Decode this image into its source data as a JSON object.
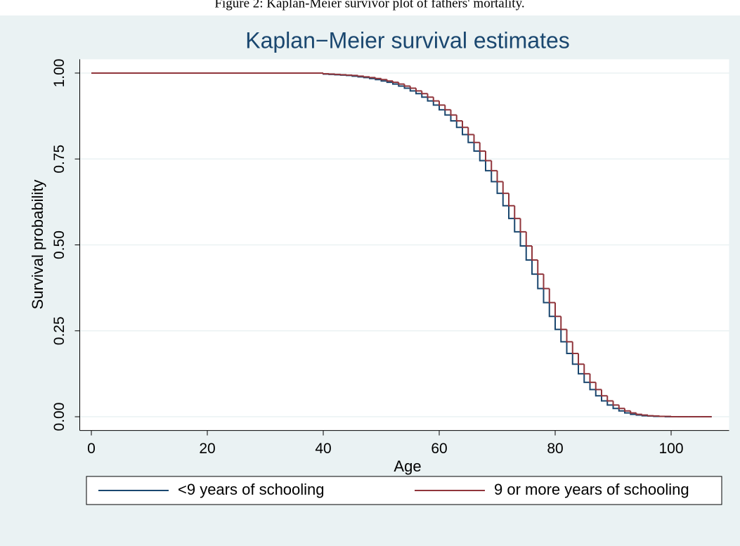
{
  "caption": "Figure 2: Kaplan-Meier survivor plot of fathers' mortality.",
  "chart_data": {
    "type": "step",
    "title": "Kaplan−Meier survival estimates",
    "x_label": "Age",
    "y_label": "Survival probability",
    "x": [
      0,
      40,
      41,
      42,
      43,
      44,
      45,
      46,
      47,
      48,
      49,
      50,
      51,
      52,
      53,
      54,
      55,
      56,
      57,
      58,
      59,
      60,
      61,
      62,
      63,
      64,
      65,
      66,
      67,
      68,
      69,
      70,
      71,
      72,
      73,
      74,
      75,
      76,
      77,
      78,
      79,
      80,
      81,
      82,
      83,
      84,
      85,
      86,
      87,
      88,
      89,
      90,
      91,
      92,
      93,
      94,
      95,
      96,
      97,
      98,
      99,
      100,
      101,
      102,
      103,
      104,
      105,
      106,
      107
    ],
    "series": [
      {
        "name": "<9 years of schooling",
        "color": "#1a476f",
        "values": [
          1.0,
          0.997,
          0.996,
          0.995,
          0.994,
          0.993,
          0.991,
          0.989,
          0.987,
          0.984,
          0.981,
          0.977,
          0.973,
          0.968,
          0.962,
          0.956,
          0.948,
          0.94,
          0.93,
          0.919,
          0.907,
          0.893,
          0.878,
          0.861,
          0.842,
          0.821,
          0.798,
          0.773,
          0.745,
          0.716,
          0.684,
          0.65,
          0.614,
          0.577,
          0.538,
          0.497,
          0.456,
          0.415,
          0.373,
          0.332,
          0.292,
          0.254,
          0.218,
          0.184,
          0.153,
          0.125,
          0.1,
          0.079,
          0.061,
          0.046,
          0.034,
          0.024,
          0.017,
          0.011,
          0.007,
          0.005,
          0.003,
          0.002,
          0.001,
          0.001,
          0,
          0,
          0,
          0,
          0,
          0,
          0,
          0,
          0
        ]
      },
      {
        "name": "9 or more years of schooling",
        "color": "#90353b",
        "values": [
          1.0,
          0.998,
          0.997,
          0.996,
          0.995,
          0.994,
          0.993,
          0.991,
          0.989,
          0.987,
          0.984,
          0.981,
          0.977,
          0.973,
          0.968,
          0.962,
          0.956,
          0.948,
          0.94,
          0.93,
          0.919,
          0.907,
          0.893,
          0.878,
          0.861,
          0.842,
          0.821,
          0.798,
          0.773,
          0.745,
          0.716,
          0.684,
          0.65,
          0.614,
          0.577,
          0.538,
          0.497,
          0.456,
          0.415,
          0.373,
          0.332,
          0.292,
          0.254,
          0.218,
          0.184,
          0.153,
          0.125,
          0.1,
          0.079,
          0.061,
          0.046,
          0.034,
          0.024,
          0.017,
          0.011,
          0.007,
          0.005,
          0.003,
          0.002,
          0.001,
          0.001,
          0,
          0,
          0,
          0,
          0,
          0,
          0,
          0
        ]
      }
    ],
    "xlim": [
      -2,
      110
    ],
    "ylim": [
      -0.04,
      1.04
    ],
    "xticks": [
      0,
      20,
      40,
      60,
      80,
      100
    ],
    "yticks": [
      {
        "value": 0,
        "label": "0.00"
      },
      {
        "value": 0.25,
        "label": "0.25"
      },
      {
        "value": 0.5,
        "label": "0.50"
      },
      {
        "value": 0.75,
        "label": "0.75"
      },
      {
        "value": 1,
        "label": "1.00"
      }
    ],
    "grid": true,
    "legend": "bottom"
  }
}
